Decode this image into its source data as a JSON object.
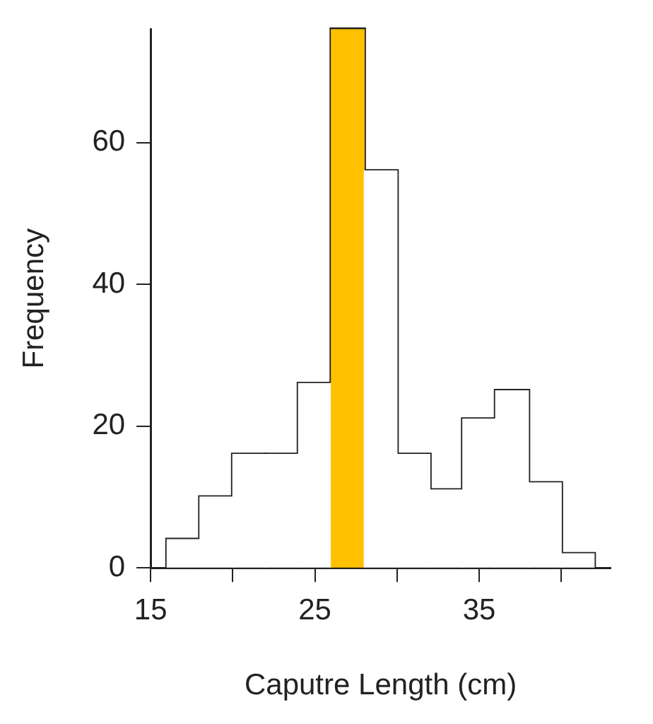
{
  "chart_data": {
    "type": "histogram",
    "xlabel": "Caputre Length (cm)",
    "ylabel": "Frequency",
    "bins": [
      16,
      18,
      20,
      22,
      24,
      26,
      28,
      30,
      32,
      34,
      36,
      38,
      40,
      42
    ],
    "values": [
      4,
      10,
      16,
      16,
      26,
      76,
      56,
      16,
      11,
      21,
      25,
      12,
      2
    ],
    "colors": [
      "#ffffff",
      "#ffffff",
      "#ffffff",
      "#ffffff",
      "#ffffff",
      "#ffc000",
      "#ffffff",
      "#ffffff",
      "#ffffff",
      "#ffffff",
      "#ffffff",
      "#ffffff",
      "#ffffff"
    ],
    "xlim": [
      15,
      43
    ],
    "xticks": [
      15,
      {
        "value": 20,
        "label": null
      },
      25,
      {
        "value": 30,
        "label": null
      },
      35,
      {
        "value": 40,
        "label": null
      }
    ],
    "ylim": [
      0,
      76
    ],
    "yticks": [
      0,
      20,
      40,
      60
    ],
    "grid": false,
    "legend": false
  }
}
